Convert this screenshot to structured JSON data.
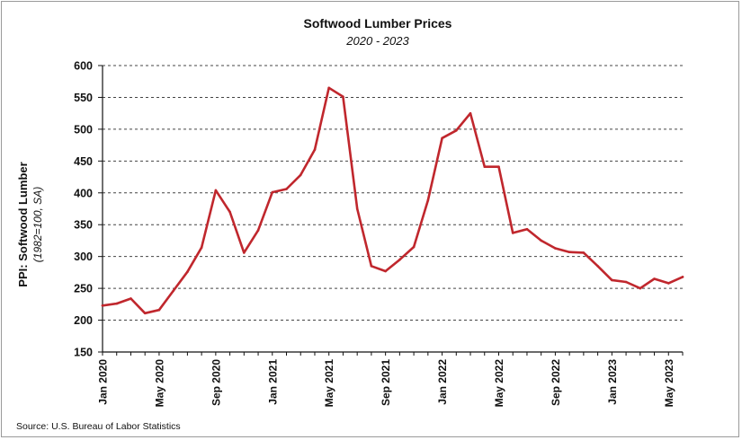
{
  "colors": {
    "series": "#c0272d",
    "grid": "#444444",
    "axis": "#111111"
  },
  "chart_data": {
    "type": "line",
    "title": "Softwood Lumber Prices",
    "subtitle": "2020 - 2023",
    "ylabel": "PPI: Softwood Lumber",
    "ylabel_sub": "(1982=100, SA)",
    "xlabel": "",
    "ylim": [
      150,
      600
    ],
    "yticks": [
      "600",
      "550",
      "500",
      "450",
      "400",
      "350",
      "300",
      "250",
      "200",
      "150"
    ],
    "ytick_values": [
      600,
      550,
      500,
      450,
      400,
      350,
      300,
      250,
      200,
      150
    ],
    "grid": "horizontal dashed",
    "x_tick_labels": [
      "Jan 2020",
      "May 2020",
      "Sep 2020",
      "Jan 2021",
      "May 2021",
      "Sep 2021",
      "Jan 2022",
      "May 2022",
      "Sep 2022",
      "Jan 2023",
      "May 2023"
    ],
    "x_tick_months": [
      "2020-01",
      "2020-05",
      "2020-09",
      "2021-01",
      "2021-05",
      "2021-09",
      "2022-01",
      "2022-05",
      "2022-09",
      "2023-01",
      "2023-05"
    ],
    "x": [
      "2020-01",
      "2020-02",
      "2020-03",
      "2020-04",
      "2020-05",
      "2020-06",
      "2020-07",
      "2020-08",
      "2020-09",
      "2020-10",
      "2020-11",
      "2020-12",
      "2021-01",
      "2021-02",
      "2021-03",
      "2021-04",
      "2021-05",
      "2021-06",
      "2021-07",
      "2021-08",
      "2021-09",
      "2021-10",
      "2021-11",
      "2021-12",
      "2022-01",
      "2022-02",
      "2022-03",
      "2022-04",
      "2022-05",
      "2022-06",
      "2022-07",
      "2022-08",
      "2022-09",
      "2022-10",
      "2022-11",
      "2022-12",
      "2023-01",
      "2023-02",
      "2023-03",
      "2023-04",
      "2023-05",
      "2023-06"
    ],
    "series": [
      {
        "values": [
          223,
          226,
          234,
          211,
          216,
          246,
          276,
          314,
          404,
          370,
          306,
          341,
          401,
          406,
          428,
          468,
          565,
          551,
          375,
          285,
          277,
          295,
          315,
          388,
          486,
          498,
          525,
          441,
          441,
          337,
          343,
          325,
          313,
          307,
          306,
          285,
          263,
          260,
          250,
          265,
          258,
          268
        ]
      }
    ]
  },
  "source": "Source: U.S. Bureau of Labor Statistics"
}
